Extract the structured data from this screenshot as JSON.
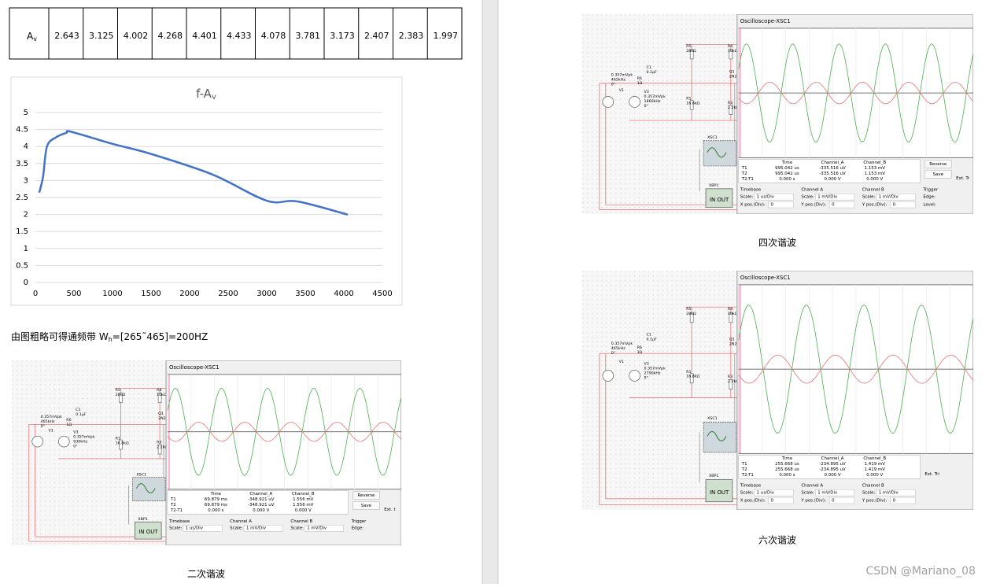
{
  "table": {
    "row_label": {
      "main": "A",
      "sub": "v"
    },
    "values": [
      2.643,
      3.125,
      4.002,
      4.268,
      4.401,
      4.433,
      4.078,
      3.781,
      3.173,
      2.407,
      2.383,
      1.997
    ]
  },
  "chart_data": {
    "type": "line",
    "title": "f-A",
    "title_sub": "v",
    "x": [
      50,
      100,
      150,
      265,
      400,
      465,
      1000,
      1500,
      2300,
      3000,
      3400,
      4050
    ],
    "values": [
      2.643,
      3.125,
      4.002,
      4.268,
      4.401,
      4.433,
      4.078,
      3.781,
      3.173,
      2.407,
      2.383,
      1.997
    ],
    "color": "#4472c4",
    "xlim": [
      0,
      4500
    ],
    "xticks": [
      0,
      500,
      1000,
      1500,
      2000,
      2500,
      3000,
      3500,
      4000,
      4500
    ],
    "ylim": [
      0,
      5
    ],
    "yticks": [
      0,
      0.5,
      1,
      1.5,
      2,
      2.5,
      3,
      3.5,
      4,
      4.5,
      5
    ],
    "grid": true
  },
  "note": {
    "before": "由图粗略可得通频带 W",
    "sub": "h",
    "after": "=[265˜465]=200HZ"
  },
  "figures": [
    {
      "caption": "二次谐波",
      "components": [
        {
          "lines": [
            "R5",
            "28kΩ"
          ]
        },
        {
          "lines": [
            "R4",
            "10kΩ"
          ]
        },
        {
          "lines": [
            "C1",
            "0.1µF"
          ]
        },
        {
          "lines": [
            "R6",
            "1Ω"
          ]
        },
        {
          "lines": [
            "0.357mVpk",
            "465kHz",
            "0°"
          ]
        },
        {
          "lines": [
            "V1"
          ]
        },
        {
          "lines": [
            "V3",
            "0.357mVpk",
            "930kHz",
            "0°"
          ]
        },
        {
          "lines": [
            "R1",
            "16.8kΩ"
          ]
        },
        {
          "lines": [
            "R3",
            "2.2kΩ"
          ]
        },
        {
          "lines": [
            "Q1",
            "2N2"
          ]
        },
        {
          "lines": [
            "XSC1"
          ]
        },
        {
          "lines": [
            "XBP1"
          ]
        },
        {
          "lines": [
            "IN OUT"
          ]
        }
      ],
      "scope": {
        "title": "Oscilloscope-XSC1",
        "headers": [
          "Time",
          "Channel_A",
          "Channel_B"
        ],
        "rows": [
          {
            "label": "T1",
            "values": [
              "69.879 ms",
              "-348.921 uV",
              "1.556 mV"
            ]
          },
          {
            "label": "T2",
            "values": [
              "69.879 ms",
              "-348.921 uV",
              "1.556 mV"
            ]
          },
          {
            "label": "T2-T1",
            "values": [
              "0.000 s",
              "0.000 V",
              "0.000 V"
            ]
          }
        ],
        "buttons": [
          "Reverse",
          "Save"
        ],
        "ext": "Ext. t",
        "timebase": {
          "heading": "Timebase",
          "scale_label": "Scale:",
          "scale": "1 us/Div"
        },
        "channel_a": {
          "heading": "Channel A",
          "scale_label": "Scale:",
          "scale": "1 mV/Div"
        },
        "channel_b": {
          "heading": "Channel B",
          "scale_label": "Scale:",
          "scale": "1 mV/Div"
        },
        "trigger": {
          "heading": "Trigger",
          "edge_label": "Edge:"
        }
      }
    },
    {
      "caption": "四次谐波",
      "components": [
        {
          "lines": [
            "R5",
            "28kΩ"
          ]
        },
        {
          "lines": [
            "R4",
            "10kΩ"
          ]
        },
        {
          "lines": [
            "C1",
            "0.1µF"
          ]
        },
        {
          "lines": [
            "R6",
            "1Ω"
          ]
        },
        {
          "lines": [
            "0.357mVpk",
            "465kHz",
            "0°"
          ]
        },
        {
          "lines": [
            "V1"
          ]
        },
        {
          "lines": [
            "V3",
            "0.357mVpk",
            "1860kHz",
            "0°"
          ]
        },
        {
          "lines": [
            "R1",
            "16.8kΩ"
          ]
        },
        {
          "lines": [
            "R3",
            "2.2kΩ"
          ]
        },
        {
          "lines": [
            "Q1",
            "2N2"
          ]
        },
        {
          "lines": [
            "XSC1"
          ]
        },
        {
          "lines": [
            "XBP1"
          ]
        },
        {
          "lines": [
            "IN OUT"
          ]
        }
      ],
      "scope": {
        "title": "Oscilloscope-XSC1",
        "headers": [
          "Time",
          "Channel_A",
          "Channel_B"
        ],
        "rows": [
          {
            "label": "T1",
            "values": [
              "995.042 us",
              "-335.516 uV",
              "1.153 mV"
            ]
          },
          {
            "label": "T2",
            "values": [
              "995.042 us",
              "-335.516 uV",
              "1.153 mV"
            ]
          },
          {
            "label": "T2-T1",
            "values": [
              "0.000 s",
              "0.000 V",
              "0.000 V"
            ]
          }
        ],
        "buttons": [
          "Reverse",
          "Save"
        ],
        "ext": "Ext. Tr",
        "timebase": {
          "heading": "Timebase",
          "scale_label": "Scale:",
          "scale": "1 us/Div",
          "pos_label": "X pos.(Div):",
          "pos": "0"
        },
        "channel_a": {
          "heading": "Channel A",
          "scale_label": "Scale:",
          "scale": "1 mV/Div",
          "pos_label": "Y pos.(Div):",
          "pos": "0"
        },
        "channel_b": {
          "heading": "Channel B",
          "scale_label": "Scale:",
          "scale": "1 mV/Div",
          "pos_label": "Y pos.(Div):",
          "pos": "0"
        },
        "trigger": {
          "heading": "Trigger",
          "edge_label": "Edge:",
          "level_label": "Level:"
        }
      }
    },
    {
      "caption": "六次谐波",
      "components": [
        {
          "lines": [
            "R5",
            "28kΩ"
          ]
        },
        {
          "lines": [
            "R4",
            "10kΩ"
          ]
        },
        {
          "lines": [
            "C1",
            "0.1µF"
          ]
        },
        {
          "lines": [
            "R6",
            "1Ω"
          ]
        },
        {
          "lines": [
            "0.357mVpk",
            "465kHz",
            "0°"
          ]
        },
        {
          "lines": [
            "V1"
          ]
        },
        {
          "lines": [
            "V3",
            "0.357mVpk",
            "2790kHz",
            "0°"
          ]
        },
        {
          "lines": [
            "R1",
            "16.8kΩ"
          ]
        },
        {
          "lines": [
            "R3",
            "2.2kΩ"
          ]
        },
        {
          "lines": [
            "Q1",
            "2N2"
          ]
        },
        {
          "lines": [
            "XSC1"
          ]
        },
        {
          "lines": [
            "XBP1"
          ]
        },
        {
          "lines": [
            "IN OUT"
          ]
        }
      ],
      "scope": {
        "title": "Oscilloscope-XSC1",
        "headers": [
          "Time",
          "Channel_A",
          "Channel_B"
        ],
        "rows": [
          {
            "label": "T1",
            "values": [
              "255.668 us",
              "-234.895 uV",
              "1.419 mV"
            ]
          },
          {
            "label": "T2",
            "values": [
              "255.668 us",
              "-234.895 uV",
              "1.419 mV"
            ]
          },
          {
            "label": "T2-T1",
            "values": [
              "0.000 s",
              "0.000 V",
              "0.000 V"
            ]
          }
        ],
        "ext": "Ext. Tri",
        "timebase": {
          "heading": "Timebase",
          "scale_label": "Scale:",
          "scale": "1 us/Div",
          "pos_label": "X pos.(Div):",
          "pos": "0"
        },
        "channel_a": {
          "heading": "Channel A",
          "scale_label": "Scale:",
          "scale": "1 mV/Div",
          "pos_label": "Y pos.(Div):",
          "pos": "0"
        },
        "channel_b": {
          "heading": "Channel B",
          "scale_label": "Scale:",
          "scale": "1 mV/Div",
          "pos_label": "Y pos.(Div):",
          "pos": "0"
        }
      }
    }
  ],
  "watermark": "CSDN @Mariano_08"
}
